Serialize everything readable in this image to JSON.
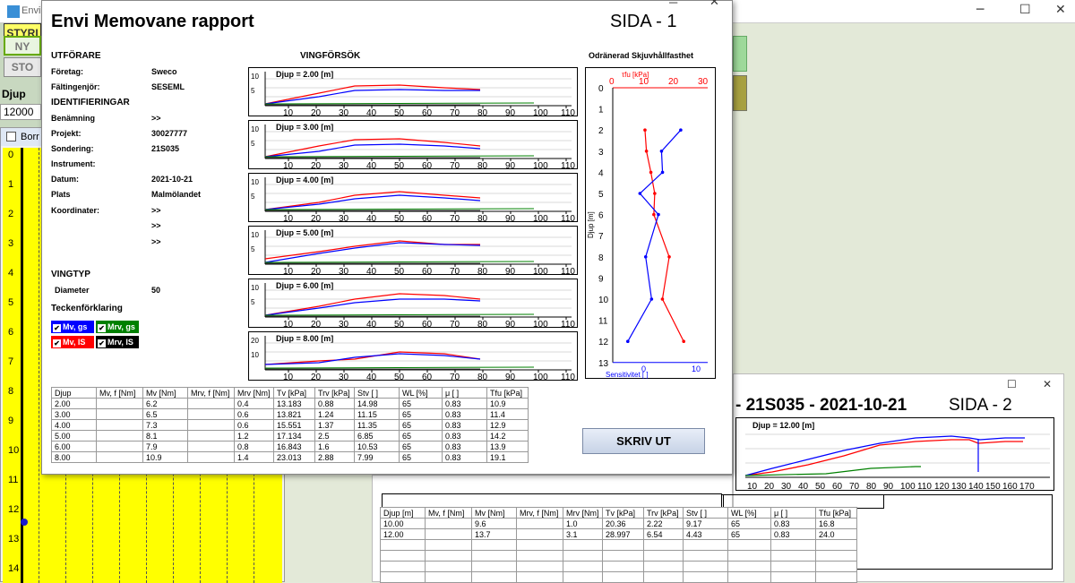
{
  "bg": {
    "title": "Envi C",
    "left_buttons": [
      "STYRI",
      "NY",
      "STO"
    ],
    "djup_label": "Djup",
    "djup_value": "12000",
    "borr_title": "Borr",
    "depth_ticks": [
      "0",
      "1",
      "2",
      "3",
      "4",
      "5",
      "6",
      "7",
      "8",
      "9",
      "10",
      "11",
      "12",
      "13",
      "14"
    ]
  },
  "report": {
    "title": "Envi Memovane rapport",
    "page": "SIDA - 1",
    "sections": {
      "utforare": "UTFÖRARE",
      "identifieringar": "IDENTIFIERINGAR",
      "vingtyp": "VINGTYP",
      "teckenforklaring": "Teckenförklaring"
    },
    "fields": [
      {
        "label": "Företag:",
        "value": "Sweco"
      },
      {
        "label": "Fältingenjör:",
        "value": "SESEML"
      },
      {
        "label": "Benämning",
        "value": ">>"
      },
      {
        "label": "Projekt:",
        "value": "30027777"
      },
      {
        "label": "Sondering:",
        "value": "21S035"
      },
      {
        "label": "Instrument:",
        "value": ""
      },
      {
        "label": "Datum:",
        "value": "2021-10-21"
      },
      {
        "label": "Plats",
        "value": "Malmölandet"
      },
      {
        "label": "Koordinater:",
        "value": ">>"
      },
      {
        "label": "",
        "value": ">>"
      },
      {
        "label": "",
        "value": ">>"
      },
      {
        "label": "Diameter",
        "value": "50"
      }
    ],
    "legend": [
      {
        "label": "Mv, gs",
        "color": "#0000ff"
      },
      {
        "label": "Mrv, gs",
        "color": "#008000"
      },
      {
        "label": "Mv, IS",
        "color": "#ff0000"
      },
      {
        "label": "Mrv, IS",
        "color": "#000000"
      }
    ],
    "vane_title": "VINGFÖRSÖK",
    "vane_charts": [
      "Djup = 2.00 [m]",
      "Djup = 3.00 [m]",
      "Djup = 4.00 [m]",
      "Djup = 5.00 [m]",
      "Djup = 6.00 [m]",
      "Djup = 8.00 [m]"
    ],
    "vane_yticks": [
      [
        "10",
        "5"
      ],
      [
        "10",
        "5"
      ],
      [
        "10",
        "5"
      ],
      [
        "10",
        "5"
      ],
      [
        "10",
        "5"
      ],
      [
        "20",
        "10"
      ]
    ],
    "vane_xticks": [
      "10",
      "20",
      "30",
      "40",
      "50",
      "60",
      "70",
      "80",
      "90",
      "100",
      "110"
    ],
    "profile": {
      "title": "Odränerad Skjuvhållfasthet",
      "top_label": "τfu [kPa]",
      "top_ticks": [
        "0",
        "10",
        "20",
        "30"
      ],
      "y_label": "Djup [m]",
      "y_ticks": [
        "0",
        "1",
        "2",
        "3",
        "4",
        "5",
        "6",
        "7",
        "8",
        "9",
        "10",
        "11",
        "12",
        "13"
      ],
      "bottom_label": "Sensitivitet [ ]",
      "bottom_ticks": [
        "0",
        "10"
      ]
    },
    "table": {
      "headers": [
        "Djup",
        "Mv, f [Nm]",
        "Mv [Nm]",
        "Mrv, f [Nm]",
        "Mrv [Nm]",
        "Tv [kPa]",
        "Trv [kPa]",
        "Stv [ ]",
        "WL [%]",
        "μ [ ]",
        "Tfu [kPa]"
      ],
      "rows": [
        [
          "2.00",
          "",
          "6.2",
          "",
          "0.4",
          "13.183",
          "0.88",
          "14.98",
          "65",
          "0.83",
          "10.9"
        ],
        [
          "3.00",
          "",
          "6.5",
          "",
          "0.6",
          "13.821",
          "1.24",
          "11.15",
          "65",
          "0.83",
          "11.4"
        ],
        [
          "4.00",
          "",
          "7.3",
          "",
          "0.6",
          "15.551",
          "1.37",
          "11.35",
          "65",
          "0.83",
          "12.9"
        ],
        [
          "5.00",
          "",
          "8.1",
          "",
          "1.2",
          "17.134",
          "2.5",
          "6.85",
          "65",
          "0.83",
          "14.2"
        ],
        [
          "6.00",
          "",
          "7.9",
          "",
          "0.8",
          "16.843",
          "1.6",
          "10.53",
          "65",
          "0.83",
          "13.9"
        ],
        [
          "8.00",
          "",
          "10.9",
          "",
          "1.4",
          "23.013",
          "2.88",
          "7.99",
          "65",
          "0.83",
          "19.1"
        ]
      ]
    },
    "print_label": "SKRIV UT"
  },
  "page2": {
    "title": "21S035 - 2021-10-21",
    "page": "SIDA - 2",
    "chart_label": "Djup = 12.00 [m]",
    "xticks": [
      "10",
      "20",
      "30",
      "40",
      "50",
      "60",
      "70",
      "80",
      "90",
      "100",
      "110",
      "120",
      "130",
      "140",
      "150",
      "160",
      "170"
    ],
    "table": {
      "headers": [
        "Djup [m]",
        "Mv, f [Nm]",
        "Mv [Nm]",
        "Mrv, f [Nm]",
        "Mrv [Nm]",
        "Tv [kPa]",
        "Trv [kPa]",
        "Stv [ ]",
        "WL [%]",
        "μ [ ]",
        "Tfu [kPa]"
      ],
      "rows": [
        [
          "10.00",
          "",
          "9.6",
          "",
          "1.0",
          "20.36",
          "2.22",
          "9.17",
          "65",
          "0.83",
          "16.8"
        ],
        [
          "12.00",
          "",
          "13.7",
          "",
          "3.1",
          "28.997",
          "6.54",
          "4.43",
          "65",
          "0.83",
          "24.0"
        ]
      ]
    }
  }
}
